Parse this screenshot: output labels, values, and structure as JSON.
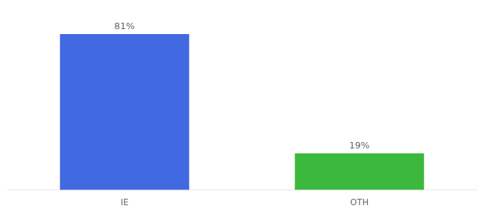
{
  "chart_data": {
    "type": "bar",
    "categories": [
      "IE",
      "OTH"
    ],
    "values": [
      81,
      19
    ],
    "colors": [
      "#4169E1",
      "#3CB93C"
    ],
    "data_labels": true,
    "value_labels": [
      "81%",
      "19%"
    ],
    "ylim": [
      0,
      95
    ],
    "tick_labels": "x",
    "grid": false
  }
}
